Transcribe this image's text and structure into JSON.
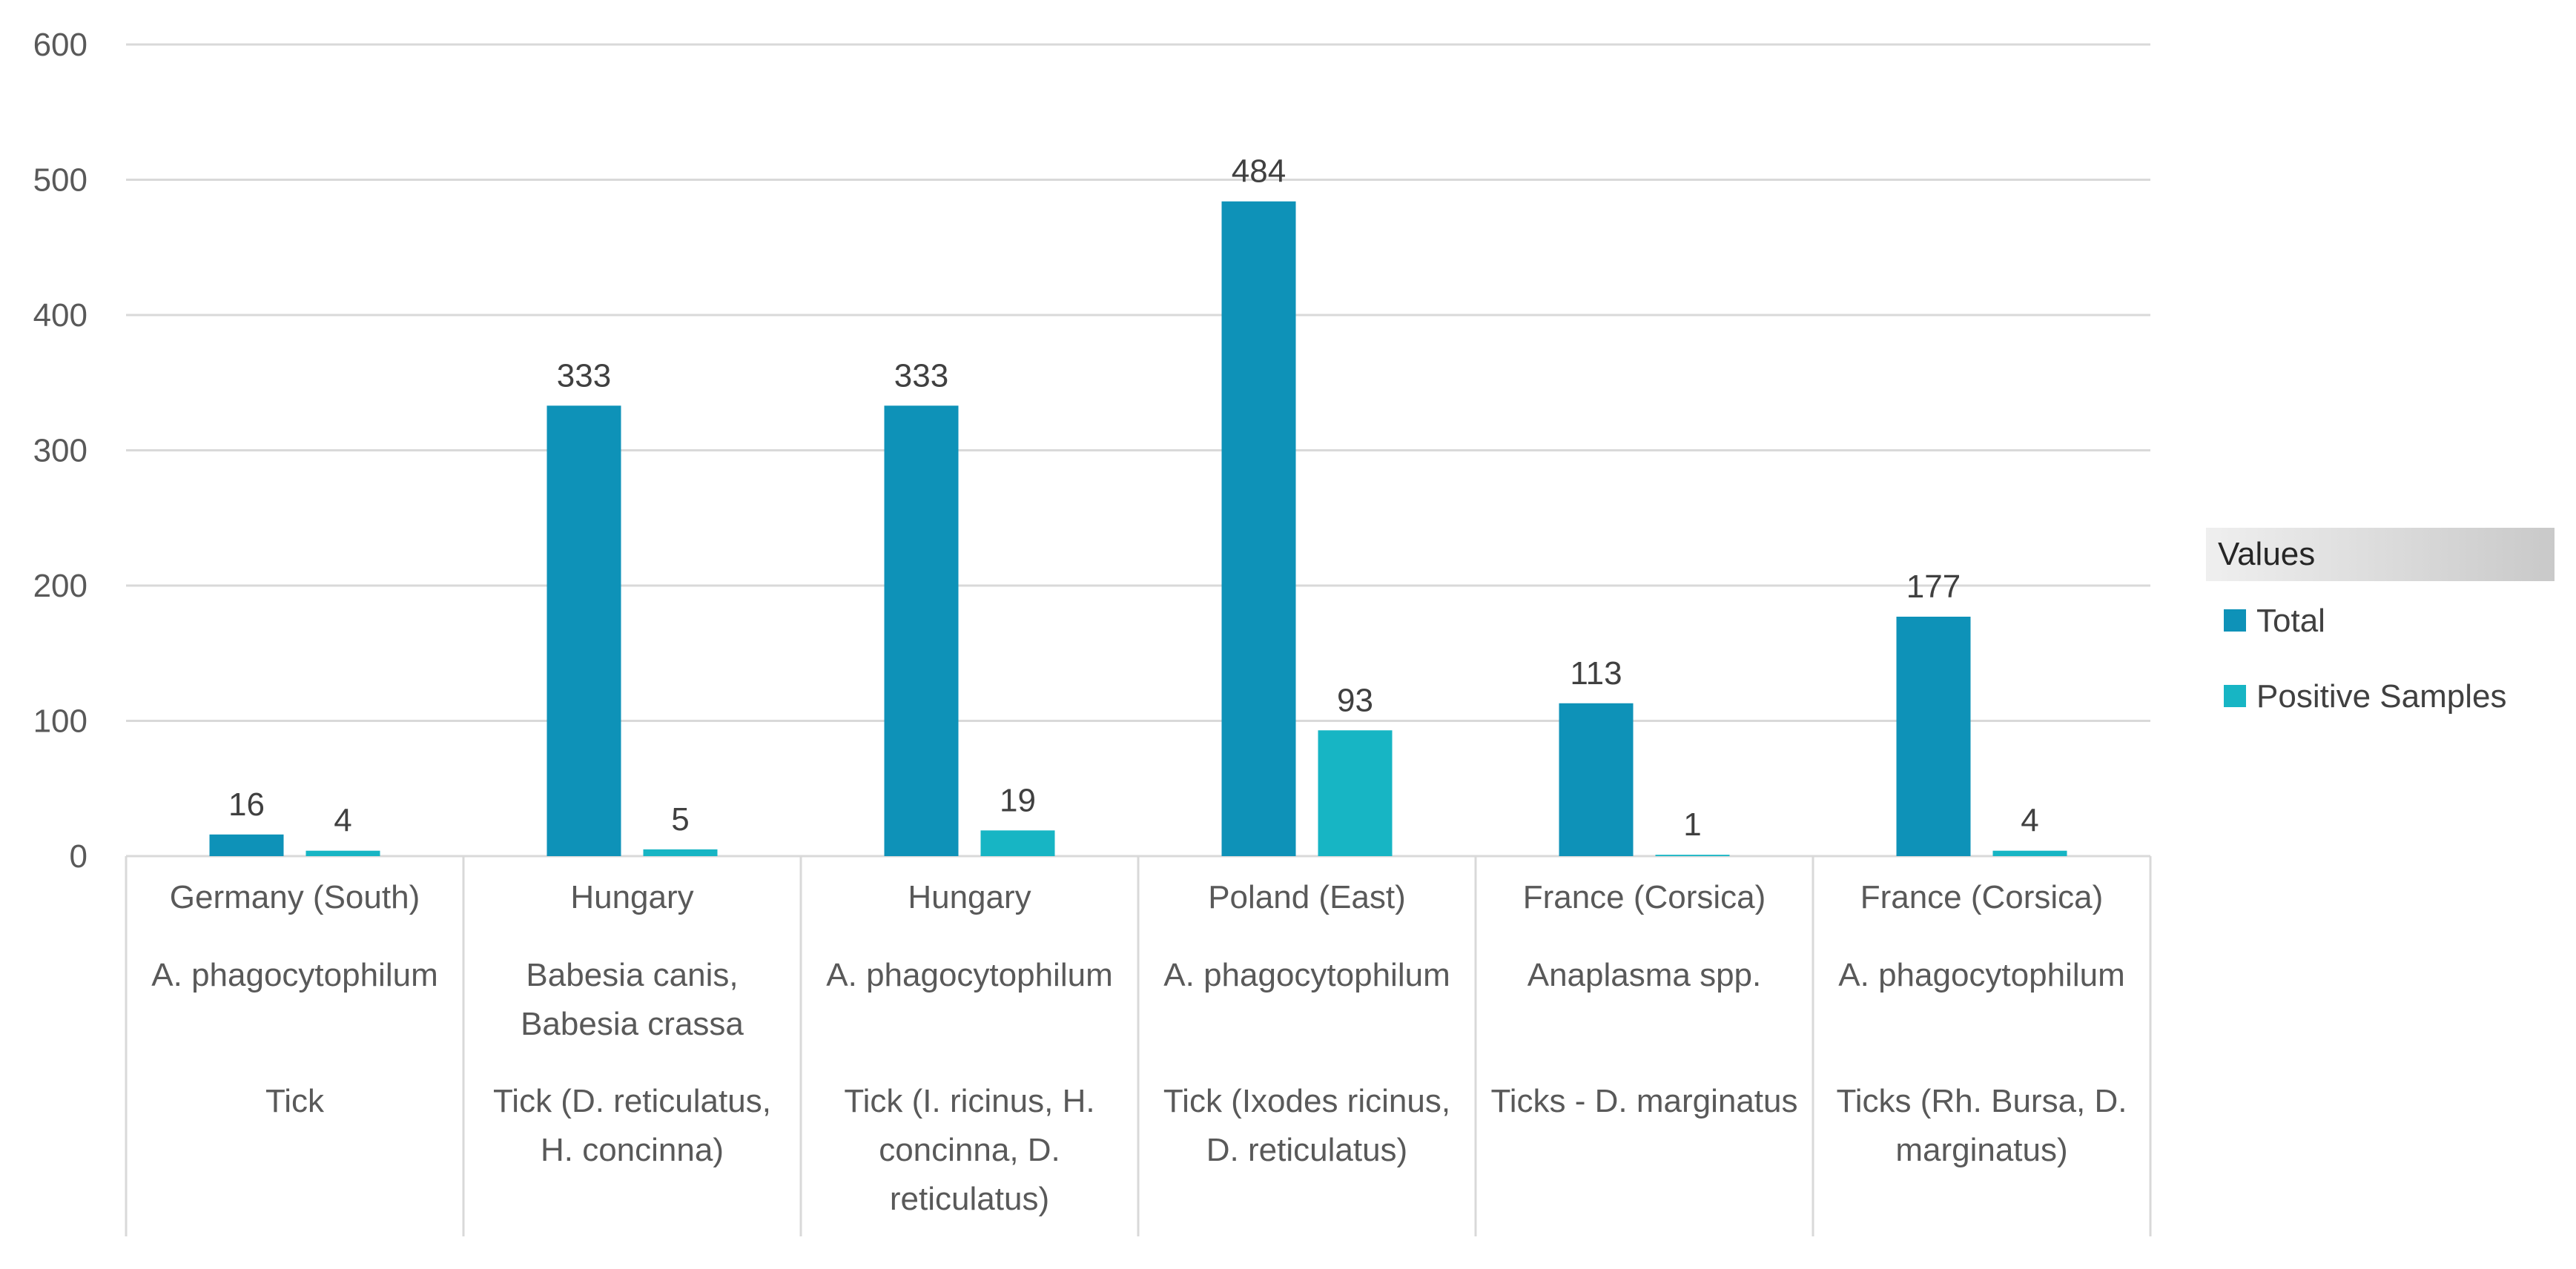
{
  "chart_data": {
    "type": "bar",
    "title": "",
    "xlabel": "",
    "ylabel": "",
    "ylim": [
      0,
      600
    ],
    "yticks": [
      "0",
      "100",
      "200",
      "300",
      "400",
      "500",
      "600"
    ],
    "grid": true,
    "legend_position": "right",
    "legend_title": "Values",
    "category_levels": 3,
    "categories": [
      {
        "country": "Germany (South)",
        "pathogen": [
          "A. phagocytophilum"
        ],
        "vector": [
          "Tick"
        ]
      },
      {
        "country": "Hungary",
        "pathogen": [
          "Babesia canis,",
          "Babesia crassa"
        ],
        "vector": [
          "Tick (D. reticulatus,",
          "H. concinna)"
        ]
      },
      {
        "country": "Hungary",
        "pathogen": [
          "A. phagocytophilum"
        ],
        "vector": [
          "Tick (I. ricinus, H.",
          "concinna, D.",
          "reticulatus)"
        ]
      },
      {
        "country": "Poland (East)",
        "pathogen": [
          "A. phagocytophilum"
        ],
        "vector": [
          "Tick (Ixodes ricinus,",
          "D. reticulatus)"
        ]
      },
      {
        "country": "France (Corsica)",
        "pathogen": [
          "Anaplasma spp."
        ],
        "vector": [
          "Ticks - D. marginatus"
        ]
      },
      {
        "country": "France (Corsica)",
        "pathogen": [
          "A. phagocytophilum"
        ],
        "vector": [
          "Ticks (Rh. Bursa, D.",
          "marginatus)"
        ]
      }
    ],
    "series": [
      {
        "name": "Total",
        "color": "#0e92b8",
        "values": [
          16,
          333,
          333,
          484,
          113,
          177
        ]
      },
      {
        "name": "Positive Samples",
        "color": "#17b5c4",
        "values": [
          4,
          5,
          19,
          93,
          1,
          4
        ]
      }
    ]
  }
}
